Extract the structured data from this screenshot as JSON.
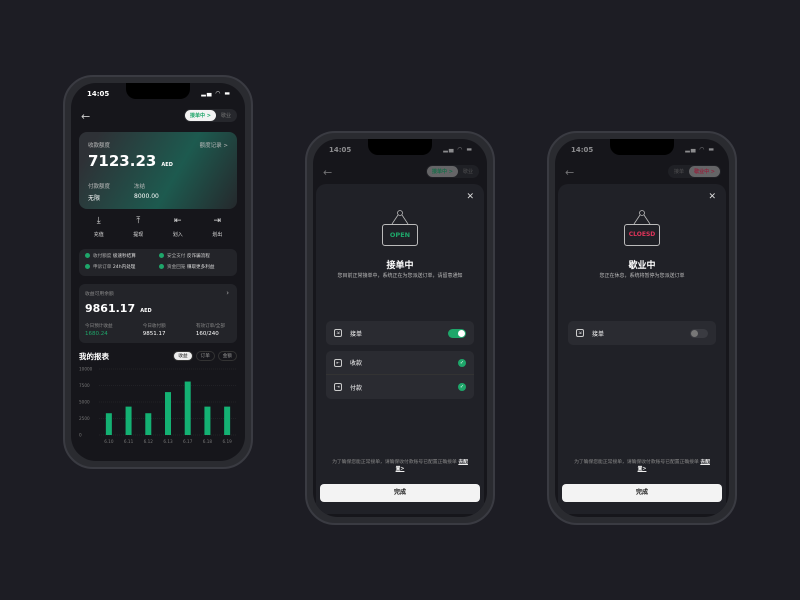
{
  "status_time": "14:05",
  "pill": {
    "open": "接单中 >",
    "closed": "歇业",
    "open_plain": "接单",
    "closed_active": "歇业中 >"
  },
  "dashboard": {
    "card": {
      "label": "收款额度",
      "record": "额度记录 >",
      "amount": "7123.23",
      "currency": "AED",
      "pay_label": "付款额度",
      "pay_value": "无限",
      "frozen_label": "冻结",
      "frozen_value": "8000.00"
    },
    "actions": [
      {
        "label": "充值",
        "icon": "deposit-icon"
      },
      {
        "label": "提现",
        "icon": "withdraw-icon"
      },
      {
        "label": "划入",
        "icon": "transfer-in-icon"
      },
      {
        "label": "划出",
        "icon": "transfer-out-icon"
      }
    ],
    "features": [
      {
        "k": "收付额度",
        "v": "极速秒结算"
      },
      {
        "k": "安全支付",
        "v": "反诈骗流程"
      },
      {
        "k": "申诉订单",
        "v": "24h内处理"
      },
      {
        "k": "资金回笼",
        "v": "赚取更多利益"
      }
    ],
    "balance": {
      "label": "收益可用余额",
      "amount": "9861.17",
      "currency": "AED",
      "stats": [
        {
          "label": "今日预计收益",
          "value": "1680.24"
        },
        {
          "label": "今日收付额",
          "value": "9851.17"
        },
        {
          "label": "有效订单/全部",
          "value": "160/240"
        }
      ]
    },
    "report": {
      "title": "我的报表",
      "tabs": [
        "收益",
        "订单",
        "金额"
      ]
    }
  },
  "chart_data": {
    "type": "bar",
    "categories": [
      "6.10",
      "6.11",
      "6.12",
      "6.13",
      "6.17",
      "6.18",
      "6.19"
    ],
    "values": [
      3300,
      4300,
      3300,
      6500,
      8100,
      4300,
      4300
    ],
    "yticks": [
      "10000",
      "7500",
      "5000",
      "2500",
      "0"
    ],
    "ylim": [
      0,
      10000
    ],
    "color": "#14b173",
    "grid": true
  },
  "open_modal": {
    "sign": "OPEN",
    "title": "接单中",
    "desc": "您目前正常接单中，系统正在为您派送订单，请留意通知",
    "options": [
      {
        "label": "接单"
      },
      {
        "label": "收款"
      },
      {
        "label": "付款"
      }
    ]
  },
  "closed_modal": {
    "sign": "CLOESD",
    "title": "歇业中",
    "desc": "您正在休息，系统将暂停为您派送订单",
    "options": [
      {
        "label": "接单"
      }
    ]
  },
  "note": "为了确保您能正常接单，请确保收付款账号已配置正确接单",
  "note_link": "去配置>",
  "done": "完成",
  "colors": {
    "green": "#1ea66a",
    "red": "#e0345a"
  }
}
